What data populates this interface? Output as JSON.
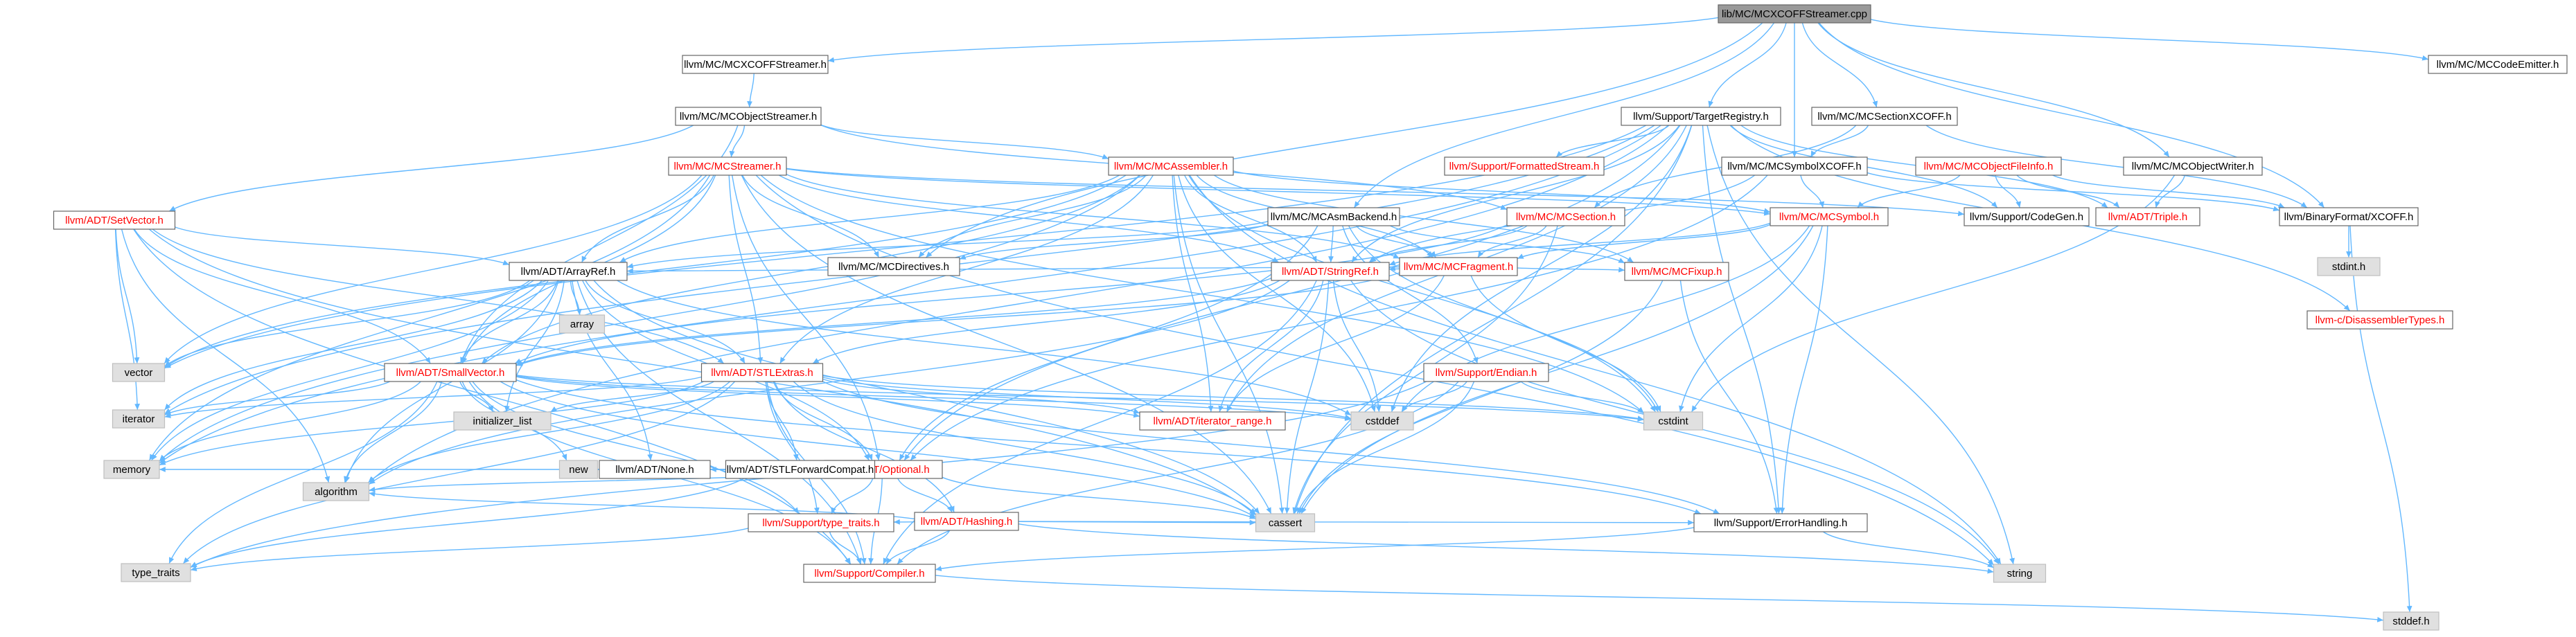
{
  "colors": {
    "edge": "#63b8ff",
    "box_border": "#666666",
    "root_fill": "#999999",
    "white_fill": "#ffffff",
    "ext_fill": "#e0e0e0",
    "red_text": "#ff0000",
    "black_text": "#000000"
  },
  "nodes": [
    {
      "id": "root",
      "label": "lib/MC/MCXCOFFStreamer.cpp",
      "kind": "root"
    },
    {
      "id": "xcoffstreamer",
      "label": "llvm/MC/MCXCOFFStreamer.h",
      "kind": "doc"
    },
    {
      "id": "codeemitter",
      "label": "llvm/MC/MCCodeEmitter.h",
      "kind": "doc"
    },
    {
      "id": "objstreamer",
      "label": "llvm/MC/MCObjectStreamer.h",
      "kind": "doc"
    },
    {
      "id": "targetregistry",
      "label": "llvm/Support/TargetRegistry.h",
      "kind": "doc"
    },
    {
      "id": "sectionxcoff",
      "label": "llvm/MC/MCSectionXCOFF.h",
      "kind": "doc"
    },
    {
      "id": "objwriter",
      "label": "llvm/MC/MCObjectWriter.h",
      "kind": "doc"
    },
    {
      "id": "mcstreamer",
      "label": "llvm/MC/MCStreamer.h",
      "kind": "red"
    },
    {
      "id": "mcassembler",
      "label": "llvm/MC/MCAssembler.h",
      "kind": "red"
    },
    {
      "id": "formattedstream",
      "label": "llvm/Support/FormattedStream.h",
      "kind": "red"
    },
    {
      "id": "symbolxcoff",
      "label": "llvm/MC/MCSymbolXCOFF.h",
      "kind": "doc"
    },
    {
      "id": "objfileinfo",
      "label": "llvm/MC/MCObjectFileInfo.h",
      "kind": "red"
    },
    {
      "id": "setvector",
      "label": "llvm/ADT/SetVector.h",
      "kind": "red"
    },
    {
      "id": "asmbackend",
      "label": "llvm/MC/MCAsmBackend.h",
      "kind": "doc"
    },
    {
      "id": "mcsection",
      "label": "llvm/MC/MCSection.h",
      "kind": "red"
    },
    {
      "id": "mcsymbol",
      "label": "llvm/MC/MCSymbol.h",
      "kind": "red"
    },
    {
      "id": "codegen",
      "label": "llvm/Support/CodeGen.h",
      "kind": "doc"
    },
    {
      "id": "triple",
      "label": "llvm/ADT/Triple.h",
      "kind": "red"
    },
    {
      "id": "binxcoff",
      "label": "llvm/BinaryFormat/XCOFF.h",
      "kind": "doc"
    },
    {
      "id": "mcdirectives",
      "label": "llvm/MC/MCDirectives.h",
      "kind": "doc"
    },
    {
      "id": "mcfragment",
      "label": "llvm/MC/MCFragment.h",
      "kind": "red"
    },
    {
      "id": "stdint",
      "label": "stdint.h",
      "kind": "ext"
    },
    {
      "id": "arrayref",
      "label": "llvm/ADT/ArrayRef.h",
      "kind": "doc"
    },
    {
      "id": "stringref",
      "label": "llvm/ADT/StringRef.h",
      "kind": "red"
    },
    {
      "id": "mcfixup",
      "label": "llvm/MC/MCFixup.h",
      "kind": "red"
    },
    {
      "id": "disasmtypes",
      "label": "llvm-c/DisassemblerTypes.h",
      "kind": "red"
    },
    {
      "id": "vector",
      "label": "vector",
      "kind": "ext"
    },
    {
      "id": "array",
      "label": "array",
      "kind": "ext"
    },
    {
      "id": "smallvector",
      "label": "llvm/ADT/SmallVector.h",
      "kind": "red"
    },
    {
      "id": "stlextras",
      "label": "llvm/ADT/STLExtras.h",
      "kind": "red"
    },
    {
      "id": "endian",
      "label": "llvm/Support/Endian.h",
      "kind": "red"
    },
    {
      "id": "iterator",
      "label": "iterator",
      "kind": "ext"
    },
    {
      "id": "initlist",
      "label": "initializer_list",
      "kind": "ext"
    },
    {
      "id": "iterrange",
      "label": "llvm/ADT/iterator_range.h",
      "kind": "red"
    },
    {
      "id": "cstddef",
      "label": "cstddef",
      "kind": "ext"
    },
    {
      "id": "cstdint",
      "label": "cstdint",
      "kind": "ext"
    },
    {
      "id": "optional",
      "label": "llvm/ADT/Optional.h",
      "kind": "red"
    },
    {
      "id": "memory",
      "label": "memory",
      "kind": "ext"
    },
    {
      "id": "new",
      "label": "new",
      "kind": "ext"
    },
    {
      "id": "none",
      "label": "llvm/ADT/None.h",
      "kind": "doc"
    },
    {
      "id": "stlfwd",
      "label": "llvm/ADT/STLForwardCompat.h",
      "kind": "doc"
    },
    {
      "id": "hashing",
      "label": "llvm/ADT/Hashing.h",
      "kind": "red"
    },
    {
      "id": "algorithm",
      "label": "algorithm",
      "kind": "ext"
    },
    {
      "id": "typetraitsllvm",
      "label": "llvm/Support/type_traits.h",
      "kind": "red"
    },
    {
      "id": "cassert",
      "label": "cassert",
      "kind": "ext"
    },
    {
      "id": "errorhandling",
      "label": "llvm/Support/ErrorHandling.h",
      "kind": "doc"
    },
    {
      "id": "typetraits",
      "label": "type_traits",
      "kind": "ext"
    },
    {
      "id": "compiler",
      "label": "llvm/Support/Compiler.h",
      "kind": "red"
    },
    {
      "id": "string",
      "label": "string",
      "kind": "ext"
    },
    {
      "id": "stddef",
      "label": "stddef.h",
      "kind": "ext"
    }
  ],
  "edges": [
    [
      "root",
      "xcoffstreamer"
    ],
    [
      "root",
      "codeemitter"
    ],
    [
      "root",
      "targetregistry"
    ],
    [
      "root",
      "sectionxcoff"
    ],
    [
      "root",
      "objwriter"
    ],
    [
      "root",
      "symbolxcoff"
    ],
    [
      "root",
      "mcdirectives"
    ],
    [
      "root",
      "asmbackend"
    ],
    [
      "root",
      "binxcoff"
    ],
    [
      "xcoffstreamer",
      "objstreamer"
    ],
    [
      "objstreamer",
      "mcstreamer"
    ],
    [
      "objstreamer",
      "mcassembler"
    ],
    [
      "objstreamer",
      "setvector"
    ],
    [
      "objstreamer",
      "smallvector"
    ],
    [
      "objstreamer",
      "mcsection"
    ],
    [
      "targetregistry",
      "formattedstream"
    ],
    [
      "targetregistry",
      "triple"
    ],
    [
      "targetregistry",
      "stringref"
    ],
    [
      "targetregistry",
      "optional"
    ],
    [
      "targetregistry",
      "iterrange"
    ],
    [
      "targetregistry",
      "codegen"
    ],
    [
      "targetregistry",
      "disasmtypes"
    ],
    [
      "targetregistry",
      "errorhandling"
    ],
    [
      "targetregistry",
      "cassert"
    ],
    [
      "targetregistry",
      "cstddef"
    ],
    [
      "targetregistry",
      "string"
    ],
    [
      "targetregistry",
      "memory"
    ],
    [
      "targetregistry",
      "vector"
    ],
    [
      "targetregistry",
      "algorithm"
    ],
    [
      "targetregistry",
      "iterator"
    ],
    [
      "sectionxcoff",
      "mcsection"
    ],
    [
      "sectionxcoff",
      "symbolxcoff"
    ],
    [
      "sectionxcoff",
      "binxcoff"
    ],
    [
      "objwriter",
      "triple"
    ],
    [
      "objwriter",
      "cstdint"
    ],
    [
      "mcstreamer",
      "mcdirectives"
    ],
    [
      "mcstreamer",
      "mcfragment"
    ],
    [
      "mcstreamer",
      "arrayref"
    ],
    [
      "mcstreamer",
      "smallvector"
    ],
    [
      "mcstreamer",
      "stringref"
    ],
    [
      "mcstreamer",
      "optional"
    ],
    [
      "mcstreamer",
      "mcsymbol"
    ],
    [
      "mcstreamer",
      "codegen"
    ],
    [
      "mcstreamer",
      "cassert"
    ],
    [
      "mcstreamer",
      "cstdint"
    ],
    [
      "mcstreamer",
      "memory"
    ],
    [
      "mcstreamer",
      "string"
    ],
    [
      "mcstreamer",
      "vector"
    ],
    [
      "mcstreamer",
      "stlextras"
    ],
    [
      "mcassembler",
      "mcdirectives"
    ],
    [
      "mcassembler",
      "mcfragment"
    ],
    [
      "mcassembler",
      "mcsymbol"
    ],
    [
      "mcassembler",
      "arrayref"
    ],
    [
      "mcassembler",
      "smallvector"
    ],
    [
      "mcassembler",
      "stringref"
    ],
    [
      "mcassembler",
      "stlextras"
    ],
    [
      "mcassembler",
      "iterrange"
    ],
    [
      "mcassembler",
      "cassert"
    ],
    [
      "mcassembler",
      "cstddef"
    ],
    [
      "mcassembler",
      "cstdint"
    ],
    [
      "mcassembler",
      "string"
    ],
    [
      "mcassembler",
      "vector"
    ],
    [
      "mcassembler",
      "memory"
    ],
    [
      "mcassembler",
      "mcfixup"
    ],
    [
      "symbolxcoff",
      "mcsymbol"
    ],
    [
      "symbolxcoff",
      "stringref"
    ],
    [
      "symbolxcoff",
      "binxcoff"
    ],
    [
      "symbolxcoff",
      "optional"
    ],
    [
      "objfileinfo",
      "mcsymbol"
    ],
    [
      "objfileinfo",
      "triple"
    ],
    [
      "objfileinfo",
      "codegen"
    ],
    [
      "objfileinfo",
      "binxcoff"
    ],
    [
      "setvector",
      "arrayref"
    ],
    [
      "setvector",
      "smallvector"
    ],
    [
      "setvector",
      "compiler"
    ],
    [
      "setvector",
      "stlextras"
    ],
    [
      "setvector",
      "algorithm"
    ],
    [
      "setvector",
      "cassert"
    ],
    [
      "setvector",
      "iterator"
    ],
    [
      "setvector",
      "vector"
    ],
    [
      "asmbackend",
      "mcdirectives"
    ],
    [
      "asmbackend",
      "mcfragment"
    ],
    [
      "asmbackend",
      "arrayref"
    ],
    [
      "asmbackend",
      "optional"
    ],
    [
      "asmbackend",
      "mcfixup"
    ],
    [
      "asmbackend",
      "endian"
    ],
    [
      "asmbackend",
      "cstdint"
    ],
    [
      "asmbackend",
      "stringref"
    ],
    [
      "mcsection",
      "mcfragment"
    ],
    [
      "mcsection",
      "smallvector"
    ],
    [
      "mcsection",
      "cassert"
    ],
    [
      "mcsection",
      "stringref"
    ],
    [
      "mcsymbol",
      "mcfragment"
    ],
    [
      "mcsymbol",
      "stringref"
    ],
    [
      "mcsymbol",
      "errorhandling"
    ],
    [
      "mcsymbol",
      "cassert"
    ],
    [
      "mcsymbol",
      "cstddef"
    ],
    [
      "mcsymbol",
      "cstdint"
    ],
    [
      "binxcoff",
      "stdint"
    ],
    [
      "binxcoff",
      "stddef"
    ],
    [
      "mcfragment",
      "arrayref"
    ],
    [
      "mcfragment",
      "smallvector"
    ],
    [
      "mcfragment",
      "stringref"
    ],
    [
      "mcfragment",
      "iterrange"
    ],
    [
      "mcfragment",
      "mcfixup"
    ],
    [
      "mcfragment",
      "cstdint"
    ],
    [
      "mcfragment",
      "utility"
    ],
    [
      "arrayref",
      "smallvector"
    ],
    [
      "arrayref",
      "stlextras"
    ],
    [
      "arrayref",
      "compiler"
    ],
    [
      "arrayref",
      "algorithm"
    ],
    [
      "arrayref",
      "array"
    ],
    [
      "arrayref",
      "cassert"
    ],
    [
      "arrayref",
      "cstddef"
    ],
    [
      "arrayref",
      "initlist"
    ],
    [
      "arrayref",
      "iterator"
    ],
    [
      "arrayref",
      "memory"
    ],
    [
      "arrayref",
      "type_traits"
    ],
    [
      "arrayref",
      "vector"
    ],
    [
      "arrayref",
      "none"
    ],
    [
      "arrayref",
      "optional"
    ],
    [
      "stringref",
      "stlextras"
    ],
    [
      "stringref",
      "iterrange"
    ],
    [
      "stringref",
      "compiler"
    ],
    [
      "stringref",
      "algorithm"
    ],
    [
      "stringref",
      "cassert"
    ],
    [
      "stringref",
      "cstddef"
    ],
    [
      "stringref",
      "cstring"
    ],
    [
      "stringref",
      "limits"
    ],
    [
      "stringref",
      "string"
    ],
    [
      "stringref",
      "type_traits"
    ],
    [
      "stringref",
      "utility"
    ],
    [
      "stringref",
      "smallvector"
    ],
    [
      "mcfixup",
      "errorhandling"
    ],
    [
      "mcfixup",
      "cassert"
    ],
    [
      "smallvector",
      "compiler"
    ],
    [
      "smallvector",
      "typetraitsllvm"
    ],
    [
      "smallvector",
      "algorithm"
    ],
    [
      "smallvector",
      "cassert"
    ],
    [
      "smallvector",
      "cstddef"
    ],
    [
      "smallvector",
      "cstdint"
    ],
    [
      "smallvector",
      "initlist"
    ],
    [
      "smallvector",
      "iterator"
    ],
    [
      "smallvector",
      "memory"
    ],
    [
      "smallvector",
      "new"
    ],
    [
      "smallvector",
      "typetraits"
    ],
    [
      "smallvector",
      "iterrange"
    ],
    [
      "smallvector",
      "errorhandling"
    ],
    [
      "stlextras",
      "optional"
    ],
    [
      "stlextras",
      "stlfwd"
    ],
    [
      "stlextras",
      "iterrange"
    ],
    [
      "stlextras",
      "compiler"
    ],
    [
      "stlextras",
      "errorhandling"
    ],
    [
      "stlextras",
      "algorithm"
    ],
    [
      "stlextras",
      "cassert"
    ],
    [
      "stlextras",
      "cstddef"
    ],
    [
      "stlextras",
      "cstdint"
    ],
    [
      "stlextras",
      "initlist"
    ],
    [
      "stlextras",
      "iterator"
    ],
    [
      "stlextras",
      "memory"
    ],
    [
      "stlextras",
      "typetraits"
    ],
    [
      "stlextras",
      "hashing"
    ],
    [
      "stlextras",
      "typetraitsllvm"
    ],
    [
      "endian",
      "compiler"
    ],
    [
      "endian",
      "cassert"
    ],
    [
      "endian",
      "cstddef"
    ],
    [
      "endian",
      "cstdint"
    ],
    [
      "endian",
      "typetraits"
    ],
    [
      "optional",
      "none"
    ],
    [
      "optional",
      "stlfwd"
    ],
    [
      "optional",
      "hashing"
    ],
    [
      "optional",
      "compiler"
    ],
    [
      "optional",
      "typetraitsllvm"
    ],
    [
      "optional",
      "cassert"
    ],
    [
      "optional",
      "memory"
    ],
    [
      "optional",
      "new"
    ],
    [
      "optional",
      "algorithm"
    ],
    [
      "hashing",
      "errorhandling"
    ],
    [
      "hashing",
      "compiler"
    ],
    [
      "hashing",
      "typetraitsllvm"
    ],
    [
      "hashing",
      "algorithm"
    ],
    [
      "hashing",
      "cassert"
    ],
    [
      "hashing",
      "string"
    ],
    [
      "typetraitsllvm",
      "compiler"
    ],
    [
      "typetraitsllvm",
      "typetraits"
    ],
    [
      "stlfwd",
      "typetraits"
    ],
    [
      "errorhandling",
      "compiler"
    ],
    [
      "errorhandling",
      "string"
    ],
    [
      "compiler",
      "stddef"
    ]
  ]
}
